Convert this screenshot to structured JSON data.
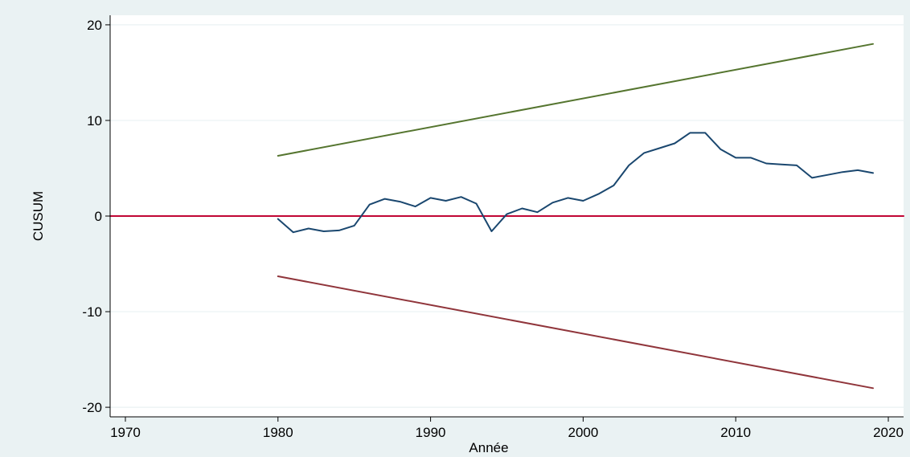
{
  "chart_data": {
    "type": "line",
    "title": "",
    "xlabel": "Année",
    "ylabel": "CUSUM",
    "xlim": [
      1969,
      2021
    ],
    "ylim": [
      -21,
      21
    ],
    "xticks": [
      1970,
      1980,
      1990,
      2000,
      2010,
      2020
    ],
    "yticks": [
      -20,
      -10,
      0,
      10,
      20
    ],
    "grid": true,
    "colors": {
      "page_bg": "#eaf2f3",
      "plot_bg": "#ffffff",
      "grid": "#eaf2f3",
      "cusum": "#1a476f",
      "upper_bound": "#55752f",
      "lower_bound": "#90353b",
      "zero_line": "#c10534"
    },
    "series": [
      {
        "key": "cusum",
        "x": [
          1980,
          1981,
          1982,
          1983,
          1984,
          1985,
          1986,
          1987,
          1988,
          1989,
          1990,
          1991,
          1992,
          1993,
          1994,
          1995,
          1996,
          1997,
          1998,
          1999,
          2000,
          2001,
          2002,
          2003,
          2004,
          2005,
          2006,
          2007,
          2008,
          2009,
          2010,
          2011,
          2012,
          2013,
          2014,
          2015,
          2016,
          2017,
          2018,
          2019
        ],
        "values": [
          -0.3,
          -1.7,
          -1.3,
          -1.6,
          -1.5,
          -1.0,
          1.2,
          1.8,
          1.5,
          1.0,
          1.9,
          1.6,
          2.0,
          1.3,
          -1.6,
          0.2,
          0.8,
          0.4,
          1.4,
          1.9,
          1.6,
          2.3,
          3.2,
          5.3,
          6.6,
          7.1,
          7.6,
          8.7,
          8.7,
          7.0,
          6.1,
          6.1,
          5.5,
          5.4,
          5.3,
          4.0,
          4.3,
          4.6,
          4.8,
          4.5
        ]
      },
      {
        "key": "upper_bound",
        "x": [
          1980,
          2019
        ],
        "values": [
          6.3,
          18.0
        ]
      },
      {
        "key": "lower_bound",
        "x": [
          1980,
          2019
        ],
        "values": [
          -6.3,
          -18.0
        ]
      },
      {
        "key": "zero_line",
        "x": [
          1969,
          2021
        ],
        "values": [
          0,
          0
        ]
      }
    ]
  }
}
